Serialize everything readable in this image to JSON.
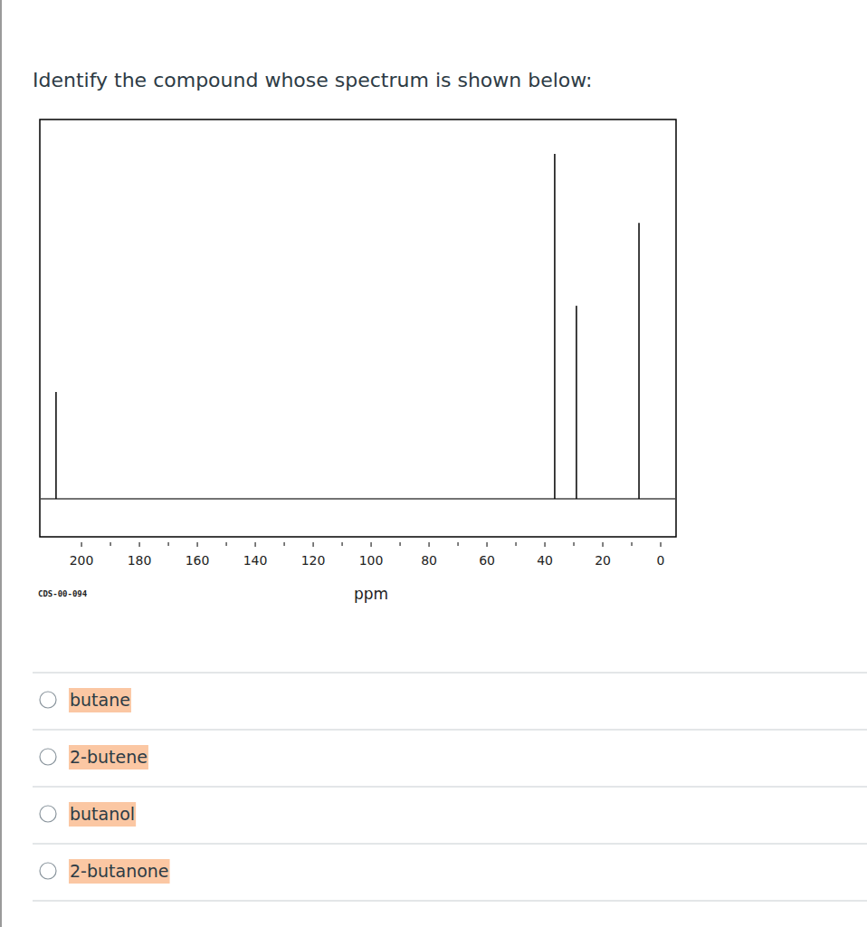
{
  "question": "Identify the compound whose spectrum is shown below:",
  "chart_data": {
    "type": "spectrum",
    "x": [
      208.8,
      36.6,
      29.1,
      7.5
    ],
    "values": [
      31,
      100,
      56,
      80
    ],
    "xlabel": "ppm",
    "caption": "CDS-00-094",
    "xlim": [
      214.4,
      -5.3
    ],
    "xticks": [
      200,
      180,
      160,
      140,
      120,
      100,
      80,
      60,
      40,
      20,
      0
    ],
    "ylim": [
      -11,
      110
    ],
    "tick_labels": "x",
    "color": "#000000"
  },
  "options": [
    "butane",
    "2-butene",
    "butanol",
    "2-butanone"
  ]
}
